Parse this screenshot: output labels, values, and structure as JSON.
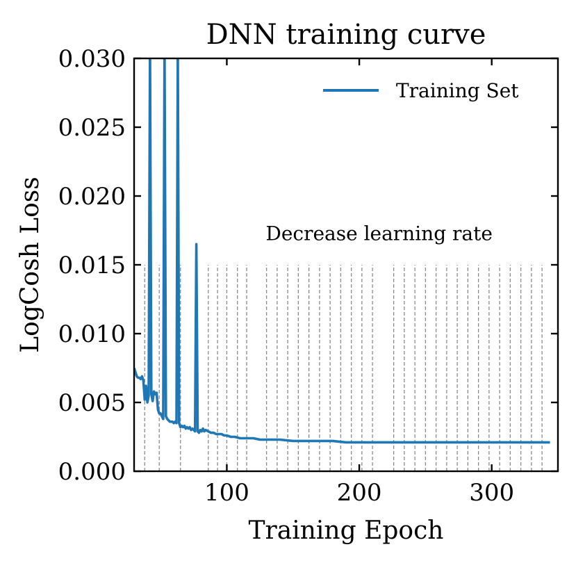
{
  "chart_data": {
    "type": "line",
    "title": "DNN training curve",
    "xlabel": "Training Epoch",
    "ylabel": "LogCosh Loss",
    "xlim": [
      30,
      350
    ],
    "ylim": [
      0.0,
      0.03
    ],
    "xticks": [
      100,
      200,
      300
    ],
    "xtick_labels": [
      "100",
      "200",
      "300"
    ],
    "yticks": [
      0.0,
      0.005,
      0.01,
      0.015,
      0.02,
      0.025,
      0.03
    ],
    "ytick_labels": [
      "0.000",
      "0.005",
      "0.010",
      "0.015",
      "0.020",
      "0.025",
      "0.030"
    ],
    "grid": false,
    "legend": {
      "position": "top-right",
      "entries": [
        "Training Set"
      ]
    },
    "annotation": {
      "text": "Decrease learning rate",
      "x": 215,
      "y": 0.0168
    },
    "lr_decrease_epochs": [
      38,
      49,
      65,
      86,
      93,
      100,
      108,
      115,
      130,
      138,
      146,
      154,
      162,
      170,
      178,
      186,
      194,
      202,
      210,
      226,
      234,
      242,
      250,
      258,
      266,
      274,
      282,
      290,
      298,
      306,
      314,
      322,
      330,
      338
    ],
    "lr_line_ymax": 0.015,
    "series": [
      {
        "name": "Training Set",
        "color": "#1f77b4",
        "points": [
          [
            30,
            0.0075
          ],
          [
            31,
            0.0072
          ],
          [
            32,
            0.0069
          ],
          [
            33,
            0.0068
          ],
          [
            34,
            0.0068
          ],
          [
            35,
            0.0067
          ],
          [
            36,
            0.0069
          ],
          [
            37,
            0.0066
          ],
          [
            38,
            0.0052
          ],
          [
            39,
            0.0062
          ],
          [
            40,
            0.005
          ],
          [
            41,
            0.0055
          ],
          [
            42,
            0.031
          ],
          [
            43,
            0.0056
          ],
          [
            44,
            0.0051
          ],
          [
            45,
            0.0058
          ],
          [
            46,
            0.0056
          ],
          [
            47,
            0.0057
          ],
          [
            48,
            0.0045
          ],
          [
            49,
            0.0042
          ],
          [
            50,
            0.0042
          ],
          [
            51,
            0.004
          ],
          [
            52,
            0.0038
          ],
          [
            53,
            0.031
          ],
          [
            54,
            0.004
          ],
          [
            55,
            0.0038
          ],
          [
            56,
            0.0037
          ],
          [
            57,
            0.0036
          ],
          [
            58,
            0.0036
          ],
          [
            59,
            0.0036
          ],
          [
            60,
            0.0035
          ],
          [
            61,
            0.0036
          ],
          [
            62,
            0.0035
          ],
          [
            63,
            0.031
          ],
          [
            64,
            0.0035
          ],
          [
            65,
            0.0032
          ],
          [
            66,
            0.0033
          ],
          [
            67,
            0.0032
          ],
          [
            68,
            0.0033
          ],
          [
            69,
            0.0031
          ],
          [
            70,
            0.0032
          ],
          [
            71,
            0.0031
          ],
          [
            72,
            0.0032
          ],
          [
            73,
            0.003
          ],
          [
            74,
            0.0031
          ],
          [
            75,
            0.003
          ],
          [
            76,
            0.0029
          ],
          [
            77,
            0.0165
          ],
          [
            78,
            0.0029
          ],
          [
            79,
            0.0028
          ],
          [
            80,
            0.003
          ],
          [
            81,
            0.0029
          ],
          [
            82,
            0.0031
          ],
          [
            83,
            0.0029
          ],
          [
            84,
            0.003
          ],
          [
            86,
            0.0029
          ],
          [
            88,
            0.0028
          ],
          [
            90,
            0.0028
          ],
          [
            92,
            0.0027
          ],
          [
            94,
            0.0027
          ],
          [
            96,
            0.0027
          ],
          [
            98,
            0.0026
          ],
          [
            100,
            0.0026
          ],
          [
            103,
            0.0025
          ],
          [
            106,
            0.0025
          ],
          [
            110,
            0.0024
          ],
          [
            115,
            0.0024
          ],
          [
            120,
            0.0024
          ],
          [
            125,
            0.0023
          ],
          [
            130,
            0.0023
          ],
          [
            140,
            0.0023
          ],
          [
            150,
            0.0022
          ],
          [
            160,
            0.0022
          ],
          [
            170,
            0.0022
          ],
          [
            180,
            0.0022
          ],
          [
            190,
            0.0021
          ],
          [
            200,
            0.0021
          ],
          [
            210,
            0.0021
          ],
          [
            220,
            0.0021
          ],
          [
            230,
            0.0021
          ],
          [
            240,
            0.0021
          ],
          [
            250,
            0.0021
          ],
          [
            260,
            0.0021
          ],
          [
            270,
            0.0021
          ],
          [
            280,
            0.0021
          ],
          [
            290,
            0.0021
          ],
          [
            300,
            0.0021
          ],
          [
            310,
            0.0021
          ],
          [
            320,
            0.0021
          ],
          [
            330,
            0.0021
          ],
          [
            340,
            0.0021
          ],
          [
            344,
            0.0021
          ]
        ]
      }
    ]
  }
}
